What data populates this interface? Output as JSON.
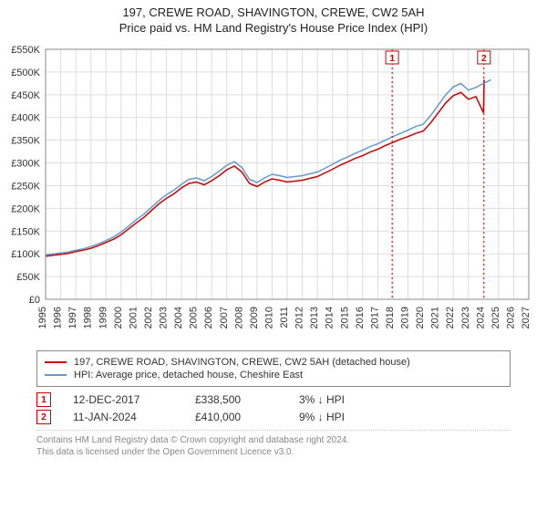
{
  "title_line1": "197, CREWE ROAD, SHAVINGTON, CREWE, CW2 5AH",
  "title_line2": "Price paid vs. HM Land Registry's House Price Index (HPI)",
  "chart": {
    "type": "line",
    "background_color": "#ffffff",
    "plot_background_color": "#ffffff",
    "grid_color": "#dddddd",
    "axis_color": "#888888",
    "ylim": [
      0,
      550000
    ],
    "ytick_step": 50000,
    "ytick_labels": [
      "£0",
      "£50K",
      "£100K",
      "£150K",
      "£200K",
      "£250K",
      "£300K",
      "£350K",
      "£400K",
      "£450K",
      "£500K",
      "£550K"
    ],
    "xlim": [
      1995,
      2027
    ],
    "xtick_step": 1,
    "xtick_labels": [
      "1995",
      "1996",
      "1997",
      "1998",
      "1999",
      "2000",
      "2001",
      "2002",
      "2003",
      "2004",
      "2005",
      "2006",
      "2007",
      "2008",
      "2009",
      "2010",
      "2011",
      "2012",
      "2013",
      "2014",
      "2015",
      "2016",
      "2017",
      "2018",
      "2019",
      "2020",
      "2021",
      "2022",
      "2023",
      "2024",
      "2025",
      "2026",
      "2027"
    ],
    "label_fontsize": 11,
    "line_width": 1.5,
    "series": [
      {
        "name": "property",
        "color": "#cc0000",
        "x": [
          1995,
          1995.5,
          1996,
          1996.5,
          1997,
          1997.5,
          1998,
          1998.5,
          1999,
          1999.5,
          2000,
          2000.5,
          2001,
          2001.5,
          2002,
          2002.5,
          2003,
          2003.5,
          2004,
          2004.5,
          2005,
          2005.5,
          2006,
          2006.5,
          2007,
          2007.5,
          2008,
          2008.5,
          2009,
          2009.5,
          2010,
          2010.5,
          2011,
          2011.5,
          2012,
          2012.5,
          2013,
          2013.5,
          2014,
          2014.5,
          2015,
          2015.5,
          2016,
          2016.5,
          2017,
          2017.5,
          2018,
          2018.5,
          2019,
          2019.5,
          2020,
          2020.5,
          2021,
          2021.5,
          2022,
          2022.5,
          2023,
          2023.5,
          2024,
          2024.05
        ],
        "y": [
          95000,
          97000,
          99000,
          101000,
          105000,
          108000,
          112000,
          118000,
          125000,
          132000,
          142000,
          155000,
          168000,
          180000,
          195000,
          210000,
          222000,
          232000,
          245000,
          255000,
          258000,
          252000,
          261000,
          272000,
          285000,
          293000,
          280000,
          255000,
          248000,
          258000,
          265000,
          262000,
          258000,
          260000,
          262000,
          266000,
          270000,
          278000,
          286000,
          295000,
          302000,
          310000,
          316000,
          324000,
          330000,
          338500,
          345000,
          352000,
          358000,
          365000,
          370000,
          388000,
          410000,
          432000,
          448000,
          455000,
          440000,
          446000,
          410000,
          483000
        ]
      },
      {
        "name": "hpi",
        "color": "#6699cc",
        "x": [
          1995,
          1995.5,
          1996,
          1996.5,
          1997,
          1997.5,
          1998,
          1998.5,
          1999,
          1999.5,
          2000,
          2000.5,
          2001,
          2001.5,
          2002,
          2002.5,
          2003,
          2003.5,
          2004,
          2004.5,
          2005,
          2005.5,
          2006,
          2006.5,
          2007,
          2007.5,
          2008,
          2008.5,
          2009,
          2009.5,
          2010,
          2010.5,
          2011,
          2011.5,
          2012,
          2012.5,
          2013,
          2013.5,
          2014,
          2014.5,
          2015,
          2015.5,
          2016,
          2016.5,
          2017,
          2017.5,
          2018,
          2018.5,
          2019,
          2019.5,
          2020,
          2020.5,
          2021,
          2021.5,
          2022,
          2022.5,
          2023,
          2023.5,
          2024,
          2024.5
        ],
        "y": [
          98000,
          100000,
          102000,
          104000,
          108000,
          111000,
          116000,
          122000,
          129000,
          137000,
          148000,
          161000,
          175000,
          187000,
          202000,
          217000,
          230000,
          240000,
          253000,
          264000,
          267000,
          261000,
          270000,
          282000,
          295000,
          303000,
          290000,
          264000,
          257000,
          267000,
          275000,
          272000,
          268000,
          270000,
          272000,
          276000,
          280000,
          288000,
          297000,
          306000,
          313000,
          321000,
          328000,
          336000,
          342000,
          350000,
          358000,
          365000,
          372000,
          380000,
          385000,
          404000,
          427000,
          450000,
          467000,
          475000,
          460000,
          466000,
          475000,
          483000
        ]
      }
    ],
    "sale_markers": [
      {
        "n": 1,
        "xyear": 2017.95,
        "color": "#cc0000",
        "label": "1"
      },
      {
        "n": 2,
        "xyear": 2024.03,
        "color": "#cc0000",
        "label": "2"
      }
    ]
  },
  "legend": {
    "items": [
      {
        "color": "#cc0000",
        "label": "197, CREWE ROAD, SHAVINGTON, CREWE, CW2 5AH (detached house)"
      },
      {
        "color": "#6699cc",
        "label": "HPI: Average price, detached house, Cheshire East"
      }
    ]
  },
  "sales": [
    {
      "n": "1",
      "color": "#cc0000",
      "date": "12-DEC-2017",
      "price": "£338,500",
      "diff": "3% ↓ HPI"
    },
    {
      "n": "2",
      "color": "#cc0000",
      "date": "11-JAN-2024",
      "price": "£410,000",
      "diff": "9% ↓ HPI"
    }
  ],
  "footer_line1": "Contains HM Land Registry data © Crown copyright and database right 2024.",
  "footer_line2": "This data is licensed under the Open Government Licence v3.0."
}
